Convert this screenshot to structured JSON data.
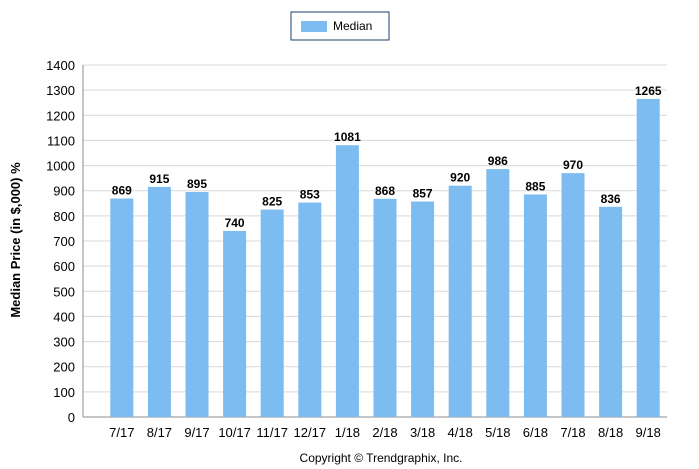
{
  "chart_data": {
    "type": "bar",
    "categories": [
      "7/17",
      "8/17",
      "9/17",
      "10/17",
      "11/17",
      "12/17",
      "1/18",
      "2/18",
      "3/18",
      "4/18",
      "5/18",
      "6/18",
      "7/18",
      "8/18",
      "9/18"
    ],
    "series": [
      {
        "name": "Median",
        "values": [
          869,
          915,
          895,
          740,
          825,
          853,
          1081,
          868,
          857,
          920,
          986,
          885,
          970,
          836,
          1265
        ]
      }
    ],
    "data_labels": [
      "869",
      "915",
      "895",
      "740",
      "825",
      "853",
      "1081",
      "868",
      "857",
      "920",
      "986",
      "885",
      "970",
      "836",
      "1265"
    ],
    "yticks": [
      "0",
      "100",
      "200",
      "300",
      "400",
      "500",
      "600",
      "700",
      "800",
      "900",
      "1000",
      "1100",
      "1200",
      "1300",
      "1400"
    ],
    "ylabel": "Median Price (in $,000) %",
    "xlabel": "",
    "title": "",
    "ylim": [
      0,
      1400
    ],
    "grid": true,
    "legend_placement": "top-center",
    "bar_color": "#7dbcf0",
    "legend_swatch_color": "#7dbcf0",
    "legend_border_color": "#1f3f6e"
  },
  "footer": {
    "copyright": "Copyright © Trendgraphix, Inc."
  }
}
